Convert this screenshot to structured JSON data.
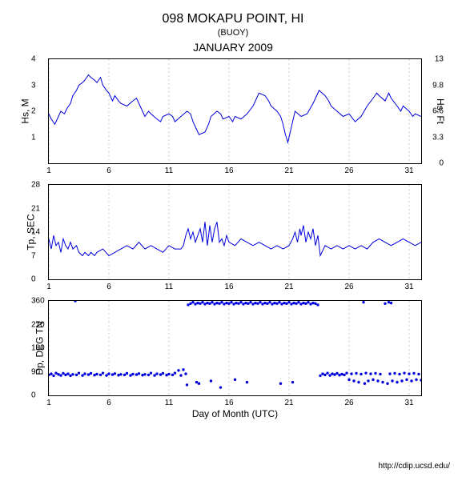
{
  "title": "098 MOKAPU POINT, HI",
  "subtitle": "(BUOY)",
  "period": "JANUARY 2009",
  "footer": "http://cdip.ucsd.edu/",
  "xlabel": "Day of Month (UTC)",
  "xlim": [
    1,
    32
  ],
  "xticks": [
    1,
    6,
    11,
    16,
    21,
    26,
    31
  ],
  "line_color": "#0000dd",
  "grid_color": "#cccccc",
  "background_color": "#ffffff",
  "panels": [
    {
      "id": "hs",
      "ylabel": "Hs, M",
      "ylabel_right": "Hs, Ft",
      "ylim": [
        0,
        4
      ],
      "yticks": [
        1,
        2,
        3,
        4
      ],
      "yticks_right": [
        0,
        3.3,
        6.6,
        9.8,
        13
      ],
      "type": "line",
      "data": [
        [
          1,
          1.9
        ],
        [
          1.2,
          1.7
        ],
        [
          1.5,
          1.5
        ],
        [
          1.8,
          1.8
        ],
        [
          2,
          2.0
        ],
        [
          2.3,
          1.9
        ],
        [
          2.5,
          2.1
        ],
        [
          2.8,
          2.3
        ],
        [
          3,
          2.6
        ],
        [
          3.3,
          2.8
        ],
        [
          3.5,
          3.0
        ],
        [
          3.8,
          3.1
        ],
        [
          4,
          3.2
        ],
        [
          4.3,
          3.4
        ],
        [
          4.5,
          3.3
        ],
        [
          4.8,
          3.2
        ],
        [
          5,
          3.1
        ],
        [
          5.3,
          3.3
        ],
        [
          5.5,
          3.0
        ],
        [
          5.8,
          2.8
        ],
        [
          6,
          2.7
        ],
        [
          6.3,
          2.4
        ],
        [
          6.5,
          2.6
        ],
        [
          6.8,
          2.4
        ],
        [
          7,
          2.3
        ],
        [
          7.5,
          2.2
        ],
        [
          8,
          2.4
        ],
        [
          8.3,
          2.5
        ],
        [
          8.5,
          2.3
        ],
        [
          9,
          1.8
        ],
        [
          9.3,
          2.0
        ],
        [
          9.5,
          1.9
        ],
        [
          10,
          1.7
        ],
        [
          10.3,
          1.6
        ],
        [
          10.5,
          1.8
        ],
        [
          11,
          1.9
        ],
        [
          11.3,
          1.8
        ],
        [
          11.5,
          1.6
        ],
        [
          12,
          1.8
        ],
        [
          12.5,
          2.0
        ],
        [
          12.8,
          1.9
        ],
        [
          13,
          1.6
        ],
        [
          13.3,
          1.3
        ],
        [
          13.5,
          1.1
        ],
        [
          14,
          1.2
        ],
        [
          14.3,
          1.5
        ],
        [
          14.5,
          1.8
        ],
        [
          15,
          2.0
        ],
        [
          15.3,
          1.9
        ],
        [
          15.5,
          1.7
        ],
        [
          16,
          1.8
        ],
        [
          16.3,
          1.6
        ],
        [
          16.5,
          1.8
        ],
        [
          17,
          1.7
        ],
        [
          17.5,
          1.9
        ],
        [
          18,
          2.2
        ],
        [
          18.3,
          2.5
        ],
        [
          18.5,
          2.7
        ],
        [
          19,
          2.6
        ],
        [
          19.3,
          2.4
        ],
        [
          19.5,
          2.2
        ],
        [
          20,
          2.0
        ],
        [
          20.3,
          1.8
        ],
        [
          20.5,
          1.5
        ],
        [
          20.7,
          1.1
        ],
        [
          20.9,
          0.8
        ],
        [
          21,
          1.0
        ],
        [
          21.3,
          1.6
        ],
        [
          21.5,
          2.0
        ],
        [
          22,
          1.8
        ],
        [
          22.5,
          1.9
        ],
        [
          23,
          2.3
        ],
        [
          23.3,
          2.6
        ],
        [
          23.5,
          2.8
        ],
        [
          24,
          2.6
        ],
        [
          24.3,
          2.4
        ],
        [
          24.5,
          2.2
        ],
        [
          25,
          2.0
        ],
        [
          25.5,
          1.8
        ],
        [
          26,
          1.9
        ],
        [
          26.5,
          1.6
        ],
        [
          27,
          1.8
        ],
        [
          27.5,
          2.2
        ],
        [
          28,
          2.5
        ],
        [
          28.3,
          2.7
        ],
        [
          28.5,
          2.6
        ],
        [
          29,
          2.4
        ],
        [
          29.3,
          2.7
        ],
        [
          29.5,
          2.5
        ],
        [
          30,
          2.2
        ],
        [
          30.3,
          2.0
        ],
        [
          30.5,
          2.2
        ],
        [
          31,
          2.0
        ],
        [
          31.3,
          1.8
        ],
        [
          31.5,
          1.9
        ],
        [
          32,
          1.8
        ]
      ]
    },
    {
      "id": "tp",
      "ylabel": "Tp, SEC",
      "ylim": [
        0,
        28
      ],
      "yticks": [
        0,
        7,
        14,
        21,
        28
      ],
      "type": "line",
      "data": [
        [
          1,
          12
        ],
        [
          1.2,
          9
        ],
        [
          1.4,
          13
        ],
        [
          1.6,
          10
        ],
        [
          1.8,
          11
        ],
        [
          2,
          8
        ],
        [
          2.2,
          12
        ],
        [
          2.4,
          10
        ],
        [
          2.6,
          9
        ],
        [
          2.8,
          11
        ],
        [
          3,
          9
        ],
        [
          3.3,
          10
        ],
        [
          3.5,
          8
        ],
        [
          3.8,
          7
        ],
        [
          4,
          8
        ],
        [
          4.3,
          7
        ],
        [
          4.5,
          8
        ],
        [
          4.8,
          7
        ],
        [
          5,
          8
        ],
        [
          5.5,
          9
        ],
        [
          6,
          7
        ],
        [
          6.5,
          8
        ],
        [
          7,
          9
        ],
        [
          7.5,
          10
        ],
        [
          8,
          9
        ],
        [
          8.5,
          11
        ],
        [
          9,
          9
        ],
        [
          9.5,
          10
        ],
        [
          10,
          9
        ],
        [
          10.5,
          8
        ],
        [
          11,
          10
        ],
        [
          11.5,
          9
        ],
        [
          12,
          9
        ],
        [
          12.2,
          10
        ],
        [
          12.4,
          13
        ],
        [
          12.6,
          15
        ],
        [
          12.8,
          12
        ],
        [
          13,
          14
        ],
        [
          13.2,
          11
        ],
        [
          13.4,
          13
        ],
        [
          13.6,
          15
        ],
        [
          13.8,
          11
        ],
        [
          14,
          17
        ],
        [
          14.2,
          10
        ],
        [
          14.4,
          16
        ],
        [
          14.6,
          11
        ],
        [
          14.8,
          15
        ],
        [
          15,
          17
        ],
        [
          15.2,
          11
        ],
        [
          15.4,
          12
        ],
        [
          15.6,
          10
        ],
        [
          15.8,
          13
        ],
        [
          16,
          11
        ],
        [
          16.5,
          10
        ],
        [
          17,
          12
        ],
        [
          17.5,
          11
        ],
        [
          18,
          10
        ],
        [
          18.5,
          11
        ],
        [
          19,
          10
        ],
        [
          19.5,
          9
        ],
        [
          20,
          10
        ],
        [
          20.5,
          9
        ],
        [
          21,
          10
        ],
        [
          21.3,
          12
        ],
        [
          21.5,
          14
        ],
        [
          21.7,
          11
        ],
        [
          21.9,
          15
        ],
        [
          22,
          13
        ],
        [
          22.2,
          16
        ],
        [
          22.4,
          11
        ],
        [
          22.6,
          14
        ],
        [
          22.8,
          12
        ],
        [
          23,
          15
        ],
        [
          23.2,
          10
        ],
        [
          23.4,
          13
        ],
        [
          23.6,
          7
        ],
        [
          24,
          10
        ],
        [
          24.5,
          9
        ],
        [
          25,
          10
        ],
        [
          25.5,
          9
        ],
        [
          26,
          10
        ],
        [
          26.5,
          9
        ],
        [
          27,
          10
        ],
        [
          27.5,
          9
        ],
        [
          28,
          11
        ],
        [
          28.5,
          12
        ],
        [
          29,
          11
        ],
        [
          29.5,
          10
        ],
        [
          30,
          11
        ],
        [
          30.5,
          12
        ],
        [
          31,
          11
        ],
        [
          31.5,
          10
        ],
        [
          32,
          11
        ]
      ]
    },
    {
      "id": "dp",
      "ylabel": "Dp, DEG TN",
      "ylim": [
        0,
        360
      ],
      "yticks": [
        0,
        90,
        180,
        270,
        360
      ],
      "type": "scatter",
      "data": [
        [
          1,
          78
        ],
        [
          1.2,
          82
        ],
        [
          1.4,
          75
        ],
        [
          1.6,
          85
        ],
        [
          1.8,
          80
        ],
        [
          2,
          76
        ],
        [
          2.2,
          84
        ],
        [
          2.4,
          78
        ],
        [
          2.6,
          82
        ],
        [
          2.8,
          75
        ],
        [
          3,
          80
        ],
        [
          3.2,
          360
        ],
        [
          3.3,
          78
        ],
        [
          3.5,
          85
        ],
        [
          3.8,
          76
        ],
        [
          4,
          82
        ],
        [
          4.3,
          79
        ],
        [
          4.5,
          84
        ],
        [
          4.8,
          77
        ],
        [
          5,
          81
        ],
        [
          5.3,
          78
        ],
        [
          5.5,
          85
        ],
        [
          5.8,
          76
        ],
        [
          6,
          82
        ],
        [
          6.3,
          79
        ],
        [
          6.5,
          83
        ],
        [
          6.8,
          77
        ],
        [
          7,
          80
        ],
        [
          7.3,
          78
        ],
        [
          7.5,
          84
        ],
        [
          7.8,
          76
        ],
        [
          8,
          81
        ],
        [
          8.3,
          79
        ],
        [
          8.5,
          83
        ],
        [
          8.8,
          77
        ],
        [
          9,
          80
        ],
        [
          9.3,
          78
        ],
        [
          9.5,
          85
        ],
        [
          9.8,
          76
        ],
        [
          10,
          82
        ],
        [
          10.3,
          79
        ],
        [
          10.5,
          84
        ],
        [
          10.8,
          77
        ],
        [
          11,
          81
        ],
        [
          11.3,
          78
        ],
        [
          11.5,
          85
        ],
        [
          11.8,
          95
        ],
        [
          12,
          76
        ],
        [
          12.2,
          98
        ],
        [
          12.4,
          82
        ],
        [
          12.5,
          40
        ],
        [
          12.6,
          345
        ],
        [
          12.8,
          350
        ],
        [
          13,
          355
        ],
        [
          13.2,
          348
        ],
        [
          13.3,
          50
        ],
        [
          13.4,
          352
        ],
        [
          13.5,
          45
        ],
        [
          13.6,
          350
        ],
        [
          13.8,
          355
        ],
        [
          14,
          348
        ],
        [
          14.2,
          352
        ],
        [
          14.4,
          350
        ],
        [
          14.5,
          55
        ],
        [
          14.6,
          355
        ],
        [
          14.8,
          348
        ],
        [
          15,
          352
        ],
        [
          15.2,
          350
        ],
        [
          15.3,
          30
        ],
        [
          15.4,
          355
        ],
        [
          15.6,
          348
        ],
        [
          15.8,
          352
        ],
        [
          16,
          350
        ],
        [
          16.2,
          355
        ],
        [
          16.4,
          348
        ],
        [
          16.5,
          60
        ],
        [
          16.6,
          352
        ],
        [
          16.8,
          350
        ],
        [
          17,
          355
        ],
        [
          17.2,
          348
        ],
        [
          17.4,
          352
        ],
        [
          17.5,
          50
        ],
        [
          17.6,
          350
        ],
        [
          17.8,
          355
        ],
        [
          18,
          348
        ],
        [
          18.2,
          352
        ],
        [
          18.4,
          350
        ],
        [
          18.6,
          355
        ],
        [
          18.8,
          348
        ],
        [
          19,
          352
        ],
        [
          19.2,
          350
        ],
        [
          19.4,
          355
        ],
        [
          19.6,
          348
        ],
        [
          19.8,
          352
        ],
        [
          20,
          350
        ],
        [
          20.2,
          355
        ],
        [
          20.3,
          45
        ],
        [
          20.4,
          348
        ],
        [
          20.6,
          352
        ],
        [
          20.8,
          350
        ],
        [
          21,
          355
        ],
        [
          21.2,
          348
        ],
        [
          21.3,
          50
        ],
        [
          21.4,
          352
        ],
        [
          21.6,
          350
        ],
        [
          21.8,
          355
        ],
        [
          22,
          348
        ],
        [
          22.2,
          352
        ],
        [
          22.4,
          350
        ],
        [
          22.6,
          355
        ],
        [
          22.8,
          348
        ],
        [
          23,
          352
        ],
        [
          23.2,
          350
        ],
        [
          23.4,
          345
        ],
        [
          23.6,
          75
        ],
        [
          23.8,
          82
        ],
        [
          24,
          78
        ],
        [
          24.2,
          85
        ],
        [
          24.4,
          76
        ],
        [
          24.6,
          82
        ],
        [
          24.8,
          79
        ],
        [
          25,
          84
        ],
        [
          25.2,
          77
        ],
        [
          25.4,
          81
        ],
        [
          25.6,
          78
        ],
        [
          25.8,
          85
        ],
        [
          26,
          60
        ],
        [
          26.2,
          82
        ],
        [
          26.4,
          55
        ],
        [
          26.6,
          84
        ],
        [
          26.8,
          50
        ],
        [
          27,
          81
        ],
        [
          27.2,
          355
        ],
        [
          27.3,
          45
        ],
        [
          27.4,
          85
        ],
        [
          27.6,
          55
        ],
        [
          27.8,
          82
        ],
        [
          28,
          60
        ],
        [
          28.2,
          84
        ],
        [
          28.4,
          55
        ],
        [
          28.6,
          81
        ],
        [
          28.8,
          50
        ],
        [
          29,
          350
        ],
        [
          29.2,
          45
        ],
        [
          29.3,
          355
        ],
        [
          29.4,
          82
        ],
        [
          29.5,
          352
        ],
        [
          29.6,
          55
        ],
        [
          29.8,
          84
        ],
        [
          30,
          50
        ],
        [
          30.2,
          81
        ],
        [
          30.4,
          55
        ],
        [
          30.6,
          85
        ],
        [
          30.8,
          60
        ],
        [
          31,
          82
        ],
        [
          31.2,
          55
        ],
        [
          31.4,
          84
        ],
        [
          31.6,
          60
        ],
        [
          31.8,
          81
        ],
        [
          32,
          58
        ]
      ]
    }
  ]
}
